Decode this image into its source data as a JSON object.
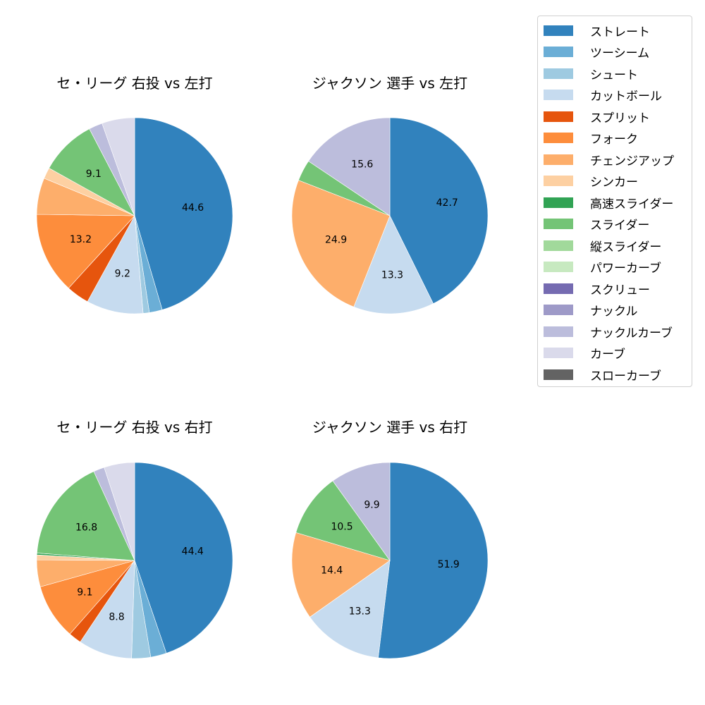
{
  "legend": {
    "items": [
      {
        "label": "ストレート",
        "color": "#3182bd"
      },
      {
        "label": "ツーシーム",
        "color": "#6baed6"
      },
      {
        "label": "シュート",
        "color": "#9ecae1"
      },
      {
        "label": "カットボール",
        "color": "#c6dbef"
      },
      {
        "label": "スプリット",
        "color": "#e6550d"
      },
      {
        "label": "フォーク",
        "color": "#fd8d3c"
      },
      {
        "label": "チェンジアップ",
        "color": "#fdae6b"
      },
      {
        "label": "シンカー",
        "color": "#fdd0a2"
      },
      {
        "label": "高速スライダー",
        "color": "#31a354"
      },
      {
        "label": "スライダー",
        "color": "#74c476"
      },
      {
        "label": "縦スライダー",
        "color": "#a1d99b"
      },
      {
        "label": "パワーカーブ",
        "color": "#c7e9c0"
      },
      {
        "label": "スクリュー",
        "color": "#756bb1"
      },
      {
        "label": "ナックル",
        "color": "#9e9ac8"
      },
      {
        "label": "ナックルカーブ",
        "color": "#bcbddc"
      },
      {
        "label": "カーブ",
        "color": "#dadaeb"
      },
      {
        "label": "スローカーブ",
        "color": "#636363"
      }
    ]
  },
  "chart_data": [
    {
      "type": "pie",
      "title": "セ・リーグ 右投 vs 左打",
      "categories": [
        "ストレート",
        "ツーシーム",
        "シュート",
        "カットボール",
        "スプリット",
        "フォーク",
        "チェンジアップ",
        "シンカー",
        "スライダー",
        "ナックルカーブ",
        "カーブ"
      ],
      "values": [
        44.6,
        2.1,
        1.0,
        9.2,
        3.7,
        13.2,
        5.9,
        1.8,
        9.1,
        2.2,
        5.3
      ],
      "labels": [
        "44.6",
        "",
        "",
        "9.2",
        "",
        "13.2",
        "",
        "",
        "9.1",
        "",
        ""
      ],
      "start_angle": 90,
      "direction": "clockwise"
    },
    {
      "type": "pie",
      "title": "ジャクソン 選手 vs 左打",
      "categories": [
        "ストレート",
        "カットボール",
        "チェンジアップ",
        "スライダー",
        "ナックルカーブ"
      ],
      "values": [
        42.7,
        13.3,
        24.9,
        3.5,
        15.6
      ],
      "labels": [
        "42.7",
        "13.3",
        "24.9",
        "",
        "15.6"
      ],
      "start_angle": 90,
      "direction": "clockwise"
    },
    {
      "type": "pie",
      "title": "セ・リーグ 右投 vs 右打",
      "categories": [
        "ストレート",
        "ツーシーム",
        "シュート",
        "カットボール",
        "スプリット",
        "フォーク",
        "チェンジアップ",
        "シンカー",
        "高速スライダー",
        "スライダー",
        "ナックルカーブ",
        "カーブ"
      ],
      "values": [
        44.4,
        2.6,
        3.1,
        8.8,
        2.1,
        9.1,
        4.4,
        0.8,
        0.3,
        16.8,
        1.8,
        5.0
      ],
      "labels": [
        "44.4",
        "",
        "",
        "8.8",
        "",
        "9.1",
        "",
        "",
        "",
        "16.8",
        "",
        ""
      ],
      "start_angle": 90,
      "direction": "clockwise"
    },
    {
      "type": "pie",
      "title": "ジャクソン 選手 vs 右打",
      "categories": [
        "ストレート",
        "カットボール",
        "チェンジアップ",
        "スライダー",
        "ナックルカーブ"
      ],
      "values": [
        51.9,
        13.3,
        14.4,
        10.5,
        9.9
      ],
      "labels": [
        "51.9",
        "13.3",
        "14.4",
        "10.5",
        "9.9"
      ],
      "start_angle": 90,
      "direction": "clockwise"
    }
  ],
  "panels": [
    {
      "title": "セ・リーグ 右投 vs 左打"
    },
    {
      "title": "ジャクソン 選手 vs 左打"
    },
    {
      "title": "セ・リーグ 右投 vs 右打"
    },
    {
      "title": "ジャクソン 選手 vs 右打"
    }
  ]
}
